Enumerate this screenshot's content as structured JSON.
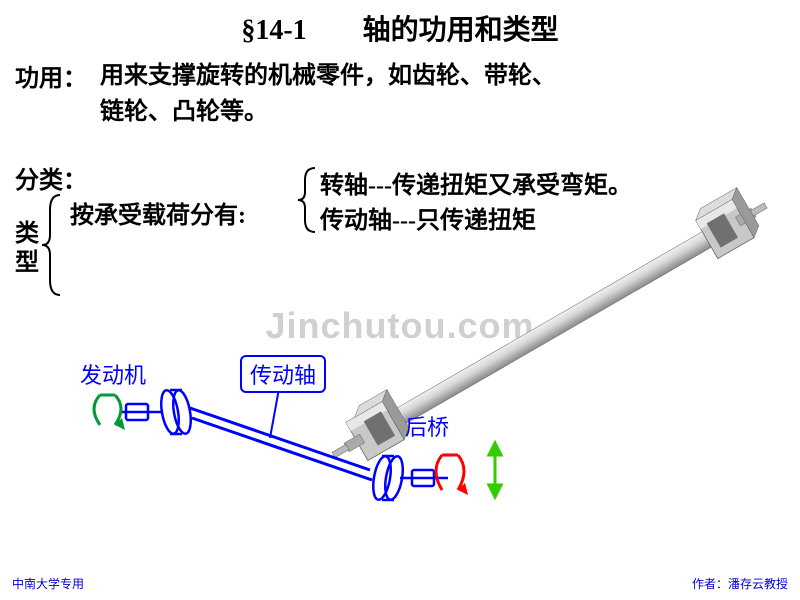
{
  "title": "§14-1　　轴的功用和类型",
  "function": {
    "label": "功用：",
    "text": "用来支撑旋转的机械零件，如齿轮、带轮、\n链轮、凸轮等。"
  },
  "classification": {
    "label": "分类：",
    "type_vertical": "类型",
    "by_load": "按承受载荷分有:",
    "shaft1": "转轴---传递扭矩又承受弯矩。",
    "shaft2": "传动轴---只传递扭矩"
  },
  "diagram": {
    "engine": "发动机",
    "driveshaft": "传动轴",
    "rearaxle": "后桥"
  },
  "watermark": "Jinchutou.com",
  "footer_left": "中南大学专用",
  "footer_right": "作者：潘存云教授",
  "colors": {
    "blue_label": "#0000ff",
    "green_arrow": "#009933",
    "red_arrow": "#ff0000",
    "shaft_grey": "#b8b8b8",
    "shaft_light": "#e0e0e0",
    "shaft_dark": "#888888",
    "lime": "#66ff33"
  },
  "brace": {
    "stroke": "#000000",
    "width": 2
  }
}
